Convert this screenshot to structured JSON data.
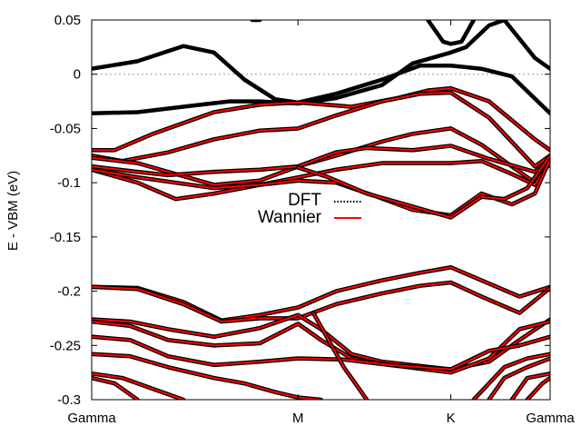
{
  "chart_data": {
    "type": "line",
    "title": "",
    "xlabel": "",
    "ylabel": "E - VBM (eV)",
    "ylim": [
      -0.3,
      0.05
    ],
    "yticks": [
      "0.05",
      "0",
      "-0.05",
      "-0.1",
      "-0.15",
      "-0.2",
      "-0.25",
      "-0.3"
    ],
    "ytick_values": [
      0.05,
      0,
      -0.05,
      -0.1,
      -0.15,
      -0.2,
      -0.25,
      -0.3
    ],
    "xlim": [
      0,
      3
    ],
    "xticks": [
      {
        "label": "Gamma",
        "x": 0
      },
      {
        "label": "M",
        "x": 1.35
      },
      {
        "label": "K",
        "x": 2.35
      },
      {
        "label": "Gamma",
        "x": 3
      }
    ],
    "zero_line": true,
    "legend": {
      "position": "center-left",
      "entries": [
        "DFT",
        "Wannier"
      ]
    },
    "series": [
      {
        "name": "DFT",
        "color": "#000000",
        "bands": [
          [
            [
              0,
              0.005
            ],
            [
              0.3,
              0.012
            ],
            [
              0.6,
              0.026
            ],
            [
              0.8,
              0.02
            ],
            [
              1.0,
              -0.005
            ],
            [
              1.2,
              -0.023
            ],
            [
              1.35,
              -0.026
            ],
            [
              1.6,
              -0.018
            ],
            [
              1.9,
              -0.005
            ],
            [
              2.15,
              0.008
            ],
            [
              2.35,
              0.008
            ],
            [
              2.55,
              0.005
            ],
            [
              2.75,
              -0.002
            ],
            [
              3.0,
              -0.036
            ]
          ],
          [
            [
              0,
              -0.036
            ],
            [
              0.3,
              -0.035
            ],
            [
              0.6,
              -0.03
            ],
            [
              0.9,
              -0.025
            ],
            [
              1.1,
              -0.025
            ],
            [
              1.35,
              -0.027
            ],
            [
              1.6,
              -0.022
            ],
            [
              1.9,
              -0.01
            ],
            [
              2.1,
              0.01
            ],
            [
              2.35,
              0.02
            ],
            [
              2.45,
              0.025
            ],
            [
              2.6,
              0.045
            ],
            [
              2.7,
              0.05
            ],
            [
              2.9,
              0.015
            ],
            [
              3.0,
              0.005
            ]
          ],
          [
            [
              1.05,
              0.05
            ],
            [
              1.1,
              0.05
            ]
          ],
          [
            [
              2.2,
              0.05
            ],
            [
              2.3,
              0.03
            ],
            [
              2.35,
              0.028
            ],
            [
              2.42,
              0.03
            ],
            [
              2.5,
              0.05
            ]
          ]
        ]
      },
      {
        "name": "Wannier",
        "color": "#ff0000",
        "bands": [
          [
            [
              0,
              -0.07
            ],
            [
              0.15,
              -0.07
            ],
            [
              0.4,
              -0.055
            ],
            [
              0.8,
              -0.035
            ],
            [
              1.1,
              -0.028
            ],
            [
              1.35,
              -0.026
            ],
            [
              1.7,
              -0.03
            ],
            [
              2.0,
              -0.022
            ],
            [
              2.2,
              -0.015
            ],
            [
              2.35,
              -0.013
            ],
            [
              2.6,
              -0.025
            ],
            [
              2.9,
              -0.06
            ],
            [
              3.0,
              -0.07
            ]
          ],
          [
            [
              0,
              -0.075
            ],
            [
              0.2,
              -0.08
            ],
            [
              0.5,
              -0.072
            ],
            [
              0.8,
              -0.06
            ],
            [
              1.1,
              -0.052
            ],
            [
              1.35,
              -0.05
            ],
            [
              1.6,
              -0.038
            ],
            [
              1.9,
              -0.025
            ],
            [
              2.15,
              -0.018
            ],
            [
              2.35,
              -0.017
            ],
            [
              2.6,
              -0.04
            ],
            [
              2.9,
              -0.085
            ],
            [
              3.0,
              -0.075
            ]
          ],
          [
            [
              0,
              -0.077
            ],
            [
              0.3,
              -0.082
            ],
            [
              0.5,
              -0.09
            ],
            [
              0.8,
              -0.102
            ],
            [
              1.1,
              -0.098
            ],
            [
              1.35,
              -0.085
            ],
            [
              1.6,
              -0.075
            ],
            [
              1.9,
              -0.062
            ],
            [
              2.1,
              -0.055
            ],
            [
              2.35,
              -0.05
            ],
            [
              2.55,
              -0.065
            ],
            [
              2.75,
              -0.085
            ],
            [
              2.9,
              -0.1
            ],
            [
              3.0,
              -0.082
            ]
          ],
          [
            [
              0,
              -0.085
            ],
            [
              0.3,
              -0.09
            ],
            [
              0.5,
              -0.093
            ],
            [
              0.8,
              -0.09
            ],
            [
              1.1,
              -0.088
            ],
            [
              1.35,
              -0.085
            ],
            [
              1.6,
              -0.072
            ],
            [
              1.8,
              -0.068
            ],
            [
              2.1,
              -0.07
            ],
            [
              2.35,
              -0.066
            ],
            [
              2.6,
              -0.078
            ],
            [
              2.9,
              -0.09
            ],
            [
              3.0,
              -0.078
            ]
          ],
          [
            [
              0,
              -0.088
            ],
            [
              0.3,
              -0.1
            ],
            [
              0.55,
              -0.115
            ],
            [
              0.8,
              -0.11
            ],
            [
              1.1,
              -0.102
            ],
            [
              1.35,
              -0.095
            ],
            [
              1.6,
              -0.088
            ],
            [
              1.9,
              -0.082
            ],
            [
              2.1,
              -0.082
            ],
            [
              2.35,
              -0.082
            ],
            [
              2.55,
              -0.08
            ],
            [
              2.75,
              -0.092
            ],
            [
              2.9,
              -0.102
            ],
            [
              3.0,
              -0.08
            ]
          ],
          [
            [
              0,
              -0.088
            ],
            [
              0.3,
              -0.095
            ],
            [
              0.55,
              -0.1
            ],
            [
              0.8,
              -0.105
            ],
            [
              1.1,
              -0.102
            ],
            [
              1.35,
              -0.098
            ],
            [
              1.6,
              -0.1
            ],
            [
              1.85,
              -0.112
            ],
            [
              2.1,
              -0.125
            ],
            [
              2.35,
              -0.13
            ],
            [
              2.55,
              -0.11
            ],
            [
              2.75,
              -0.12
            ],
            [
              2.9,
              -0.11
            ],
            [
              3.0,
              -0.078
            ]
          ],
          [
            [
              1.35,
              -0.086
            ],
            [
              1.55,
              -0.095
            ],
            [
              1.8,
              -0.11
            ],
            [
              2.05,
              -0.12
            ],
            [
              2.35,
              -0.132
            ],
            [
              2.55,
              -0.113
            ],
            [
              2.7,
              -0.115
            ],
            [
              2.85,
              -0.105
            ],
            [
              3.0,
              -0.075
            ]
          ],
          [
            [
              0,
              -0.196
            ],
            [
              0.3,
              -0.197
            ],
            [
              0.6,
              -0.21
            ],
            [
              0.85,
              -0.227
            ],
            [
              1.1,
              -0.222
            ],
            [
              1.35,
              -0.215
            ],
            [
              1.6,
              -0.2
            ],
            [
              1.9,
              -0.19
            ],
            [
              2.15,
              -0.183
            ],
            [
              2.35,
              -0.178
            ],
            [
              2.55,
              -0.19
            ],
            [
              2.8,
              -0.205
            ],
            [
              3.0,
              -0.196
            ]
          ],
          [
            [
              0,
              -0.196
            ],
            [
              0.3,
              -0.198
            ],
            [
              0.6,
              -0.212
            ],
            [
              0.85,
              -0.228
            ],
            [
              1.1,
              -0.225
            ],
            [
              1.35,
              -0.225
            ],
            [
              1.6,
              -0.212
            ],
            [
              1.9,
              -0.202
            ],
            [
              2.15,
              -0.195
            ],
            [
              2.35,
              -0.192
            ],
            [
              2.55,
              -0.205
            ],
            [
              2.8,
              -0.22
            ],
            [
              3.0,
              -0.197
            ]
          ],
          [
            [
              0,
              -0.226
            ],
            [
              0.25,
              -0.228
            ],
            [
              0.5,
              -0.235
            ],
            [
              0.8,
              -0.242
            ],
            [
              1.1,
              -0.234
            ],
            [
              1.35,
              -0.222
            ],
            [
              1.5,
              -0.235
            ],
            [
              1.7,
              -0.258
            ],
            [
              1.9,
              -0.265
            ],
            [
              2.35,
              -0.272
            ],
            [
              2.6,
              -0.265
            ],
            [
              2.8,
              -0.245
            ],
            [
              3.0,
              -0.226
            ]
          ],
          [
            [
              0,
              -0.228
            ],
            [
              0.25,
              -0.232
            ],
            [
              0.5,
              -0.245
            ],
            [
              0.8,
              -0.25
            ],
            [
              1.1,
              -0.248
            ],
            [
              1.35,
              -0.23
            ],
            [
              1.5,
              -0.245
            ],
            [
              1.7,
              -0.262
            ],
            [
              1.95,
              -0.268
            ],
            [
              2.35,
              -0.275
            ],
            [
              2.6,
              -0.262
            ],
            [
              2.8,
              -0.235
            ],
            [
              3.0,
              -0.228
            ]
          ],
          [
            [
              0,
              -0.242
            ],
            [
              0.25,
              -0.245
            ],
            [
              0.5,
              -0.26
            ],
            [
              0.8,
              -0.268
            ],
            [
              1.1,
              -0.265
            ],
            [
              1.35,
              -0.262
            ],
            [
              1.65,
              -0.263
            ],
            [
              1.95,
              -0.268
            ],
            [
              2.35,
              -0.272
            ],
            [
              2.6,
              -0.255
            ],
            [
              2.8,
              -0.25
            ],
            [
              3.0,
              -0.242
            ]
          ],
          [
            [
              0,
              -0.258
            ],
            [
              0.25,
              -0.26
            ],
            [
              0.5,
              -0.27
            ],
            [
              0.8,
              -0.28
            ],
            [
              1.0,
              -0.285
            ],
            [
              1.2,
              -0.293
            ],
            [
              1.35,
              -0.298
            ],
            [
              1.5,
              -0.3
            ]
          ],
          [
            [
              0,
              -0.276
            ],
            [
              0.2,
              -0.28
            ],
            [
              0.4,
              -0.29
            ],
            [
              0.6,
              -0.3
            ]
          ],
          [
            [
              0,
              -0.28
            ],
            [
              0.15,
              -0.285
            ],
            [
              0.3,
              -0.3
            ]
          ],
          [
            [
              1.45,
              -0.22
            ],
            [
              1.55,
              -0.245
            ],
            [
              1.65,
              -0.27
            ],
            [
              1.75,
              -0.29
            ],
            [
              1.8,
              -0.3
            ]
          ],
          [
            [
              2.5,
              -0.3
            ],
            [
              2.6,
              -0.285
            ],
            [
              2.7,
              -0.27
            ],
            [
              2.85,
              -0.262
            ],
            [
              3.0,
              -0.258
            ]
          ],
          [
            [
              2.6,
              -0.3
            ],
            [
              2.7,
              -0.28
            ],
            [
              2.85,
              -0.27
            ],
            [
              3.0,
              -0.262
            ]
          ],
          [
            [
              2.75,
              -0.3
            ],
            [
              2.85,
              -0.28
            ],
            [
              3.0,
              -0.276
            ]
          ],
          [
            [
              2.85,
              -0.3
            ],
            [
              2.95,
              -0.285
            ],
            [
              3.0,
              -0.28
            ]
          ]
        ]
      }
    ]
  }
}
